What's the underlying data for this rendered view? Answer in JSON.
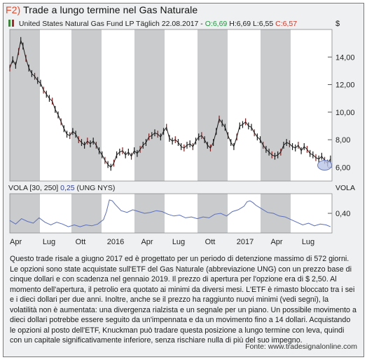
{
  "figure": {
    "number": "F2)",
    "title": "Trade a lungo termine nel Gas Naturale"
  },
  "instrument": {
    "name": "United States Natural Gas Fund LP Täglich",
    "date": "22.08.2017",
    "open": "O:6,69",
    "high": "H:6,69",
    "low": "L:6,55",
    "close": "C:6,57",
    "currency": "$"
  },
  "indicator": {
    "label": "VOLA [30, 250]",
    "value": "0,25",
    "symbol": "(UNG NYS)",
    "axis_label": "VOLA"
  },
  "caption": "Questo trade risale a giugno 2017 ed è progettato per un periodo di detenzione massimo di 572 giorni. Le opzioni sono state acquistate sull'ETF del Gas Naturale (abbreviazione UNG) con un prezzo base di cinque dollari e con scadenza nel gennaio 2019. Il prezzo di apertura per l'opzione era di $ 2,50. Al momento dell'apertura, il petrolio era quotato ai minimi da diversi mesi. L'ETF è rimasto bloccato tra i sei e i dieci dollari per due anni. Inoltre, anche se il prezzo ha raggiunto nuovi minimi (vedi segni), la volatilità non è aumentata: una divergenza rialzista e un segnale per un piano. Un possibile movimento a dieci dollari potrebbe essere seguito da un'impennata e da un movimento fino a 14 dollari. Acquistando le opzioni al posto dell'ETF, Knuckman può tradare questa posizione a lungo termine con leva, quindi con un capitale significativamente inferiore, senza rischiare nulla di più del suo impegno.",
  "source": "Fonte: www.tradesignalonline.com",
  "colors": {
    "price": "#1a1a1a",
    "vola": "#5a6fc0",
    "band": "#c9cbcd",
    "marker": "#b9c4e6"
  },
  "chart_data": [
    {
      "type": "line",
      "name": "price",
      "x_ticks": [
        "Apr",
        "Lug",
        "Ott",
        "2016",
        "Apr",
        "Lug",
        "Ott",
        "2017",
        "Apr",
        "Lug"
      ],
      "ylim": [
        5,
        16
      ],
      "y_ticks": [
        "14,00",
        "12,00",
        "10,00",
        "8,00",
        "6,00"
      ],
      "y_tick_values": [
        14,
        12,
        10,
        8,
        6
      ],
      "x": [
        0,
        4,
        8,
        12,
        15,
        18,
        22,
        26,
        30,
        34,
        38,
        42,
        46,
        50,
        54,
        58,
        62,
        66,
        70,
        74,
        78,
        82,
        86,
        90,
        94,
        98,
        102,
        106,
        110,
        114,
        118,
        122,
        126,
        130,
        134,
        138,
        142,
        146,
        150,
        154,
        158,
        162,
        166,
        170,
        174,
        178,
        182,
        186,
        190,
        194,
        198,
        202,
        206,
        210,
        214,
        218,
        222,
        226,
        230,
        234,
        238,
        242,
        246,
        250,
        254,
        258,
        262,
        266,
        270,
        274,
        278,
        282,
        286,
        290,
        294,
        298,
        302,
        306,
        310,
        314,
        318,
        322,
        326,
        330,
        334,
        338,
        342,
        346,
        350,
        354,
        358,
        362,
        366,
        370,
        374,
        378,
        382,
        386,
        390,
        394,
        398,
        402,
        406,
        410,
        414,
        418,
        422,
        426,
        430,
        434,
        438
      ],
      "values": [
        13.2,
        13.8,
        13.4,
        14.4,
        15.2,
        14.8,
        13.9,
        13.2,
        12.8,
        12.6,
        12.3,
        12.1,
        11.6,
        11.3,
        11.0,
        10.8,
        10.2,
        9.8,
        9.3,
        8.8,
        8.4,
        8.3,
        8.6,
        8.4,
        8.0,
        7.8,
        7.6,
        7.9,
        7.7,
        7.9,
        7.6,
        7.2,
        6.9,
        6.5,
        6.2,
        6.0,
        6.3,
        6.9,
        7.1,
        7.2,
        6.9,
        7.1,
        6.8,
        7.2,
        7.0,
        7.3,
        7.6,
        7.8,
        8.2,
        8.3,
        8.5,
        8.4,
        8.2,
        8.6,
        8.9,
        8.1,
        7.9,
        8.0,
        7.8,
        7.5,
        7.4,
        7.6,
        7.7,
        7.5,
        7.9,
        8.2,
        8.3,
        8.0,
        7.6,
        7.4,
        7.8,
        8.6,
        9.5,
        9.2,
        8.9,
        8.3,
        7.8,
        7.5,
        8.2,
        9.0,
        9.1,
        9.3,
        9.0,
        8.9,
        8.5,
        8.2,
        8.0,
        7.6,
        7.3,
        7.1,
        6.9,
        6.8,
        6.9,
        7.1,
        7.6,
        7.8,
        7.7,
        7.5,
        7.4,
        7.6,
        7.2,
        7.5,
        7.3,
        7.0,
        6.9,
        6.7,
        6.6,
        6.8,
        6.5,
        6.3,
        6.6
      ]
    },
    {
      "type": "line",
      "name": "VOLA [30, 250]",
      "ylim": [
        0.18,
        0.62
      ],
      "y_ticks": [
        "0,40"
      ],
      "y_tick_values": [
        0.4
      ],
      "x": [
        0,
        8,
        16,
        24,
        32,
        40,
        48,
        56,
        64,
        72,
        80,
        88,
        96,
        104,
        112,
        120,
        128,
        132,
        136,
        140,
        144,
        152,
        160,
        168,
        176,
        184,
        192,
        200,
        208,
        216,
        224,
        232,
        240,
        248,
        256,
        264,
        272,
        280,
        288,
        296,
        304,
        312,
        320,
        324,
        328,
        332,
        336,
        344,
        352,
        360,
        368,
        376,
        384,
        392,
        400,
        408,
        416,
        424,
        432,
        438
      ],
      "values": [
        0.32,
        0.28,
        0.34,
        0.31,
        0.29,
        0.35,
        0.3,
        0.27,
        0.3,
        0.28,
        0.25,
        0.27,
        0.25,
        0.27,
        0.26,
        0.28,
        0.33,
        0.42,
        0.55,
        0.54,
        0.5,
        0.43,
        0.41,
        0.44,
        0.42,
        0.4,
        0.41,
        0.43,
        0.42,
        0.39,
        0.37,
        0.38,
        0.35,
        0.36,
        0.34,
        0.36,
        0.35,
        0.39,
        0.4,
        0.37,
        0.42,
        0.44,
        0.48,
        0.53,
        0.54,
        0.52,
        0.49,
        0.45,
        0.41,
        0.4,
        0.37,
        0.36,
        0.33,
        0.3,
        0.27,
        0.29,
        0.26,
        0.28,
        0.27,
        0.25
      ]
    }
  ]
}
